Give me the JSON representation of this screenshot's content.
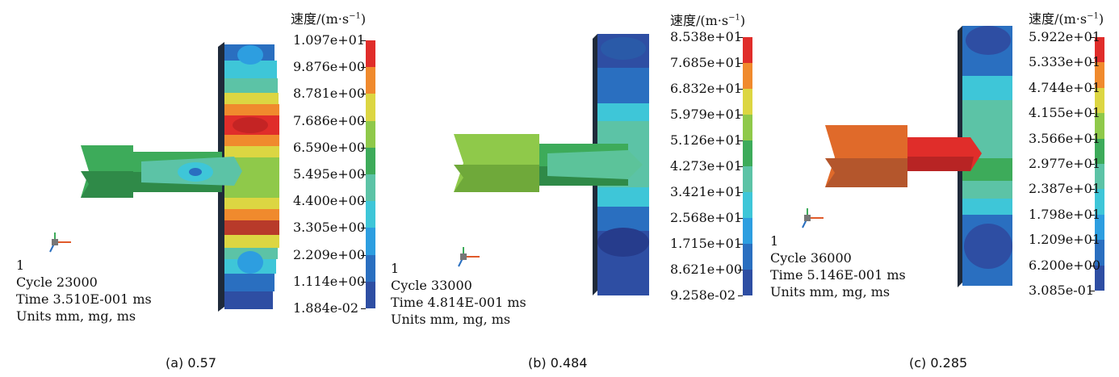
{
  "colors": {
    "scale": [
      "#2e4ea3",
      "#2a6fc0",
      "#2d9ee0",
      "#3ec6d8",
      "#5cc3a6",
      "#3dab5a",
      "#8fc94a",
      "#dcd642",
      "#f08a2d",
      "#e02d2a"
    ]
  },
  "panels": [
    {
      "legend_title": "速度/(m·s",
      "legend_sup": "−1",
      "legend_title_close": ")",
      "legend_labels": [
        "1.097e+01",
        "9.876e+00",
        "8.781e+00",
        "7.686e+00",
        "6.590e+00",
        "5.495e+00",
        "4.400e+00",
        "3.305e+00",
        "2.209e+00",
        "1.114e+00",
        "1.884e-02"
      ],
      "info": {
        "state": "1",
        "cycle": "Cycle 23000",
        "time": "Time 3.510E-001 ms",
        "units": "Units mm, mg, ms"
      },
      "caption": "(a) 0.57"
    },
    {
      "legend_title": "速度/(m·s",
      "legend_sup": "−1",
      "legend_title_close": ")",
      "legend_labels": [
        "8.538e+01",
        "7.685e+01",
        "6.832e+01",
        "5.979e+01",
        "5.126e+01",
        "4.273e+01",
        "3.421e+01",
        "2.568e+01",
        "1.715e+01",
        "8.621e+00",
        "9.258e-02"
      ],
      "info": {
        "state": "1",
        "cycle": "Cycle 33000",
        "time": "Time 4.814E-001 ms",
        "units": "Units mm, mg, ms"
      },
      "caption": "(b) 0.484"
    },
    {
      "legend_title": "速度/(m·s",
      "legend_sup": "−1",
      "legend_title_close": ")",
      "legend_labels": [
        "5.922e+01",
        "5.333e+01",
        "4.744e+01",
        "4.155e+01",
        "3.566e+01",
        "2.977e+01",
        "2.387e+01",
        "1.798e+01",
        "1.209e+01",
        "6.200e+00",
        "3.085e-01"
      ],
      "info": {
        "state": "1",
        "cycle": "Cycle 36000",
        "time": "Time 5.146E-001 ms",
        "units": "Units mm, mg, ms"
      },
      "caption": "(c) 0.285"
    }
  ]
}
